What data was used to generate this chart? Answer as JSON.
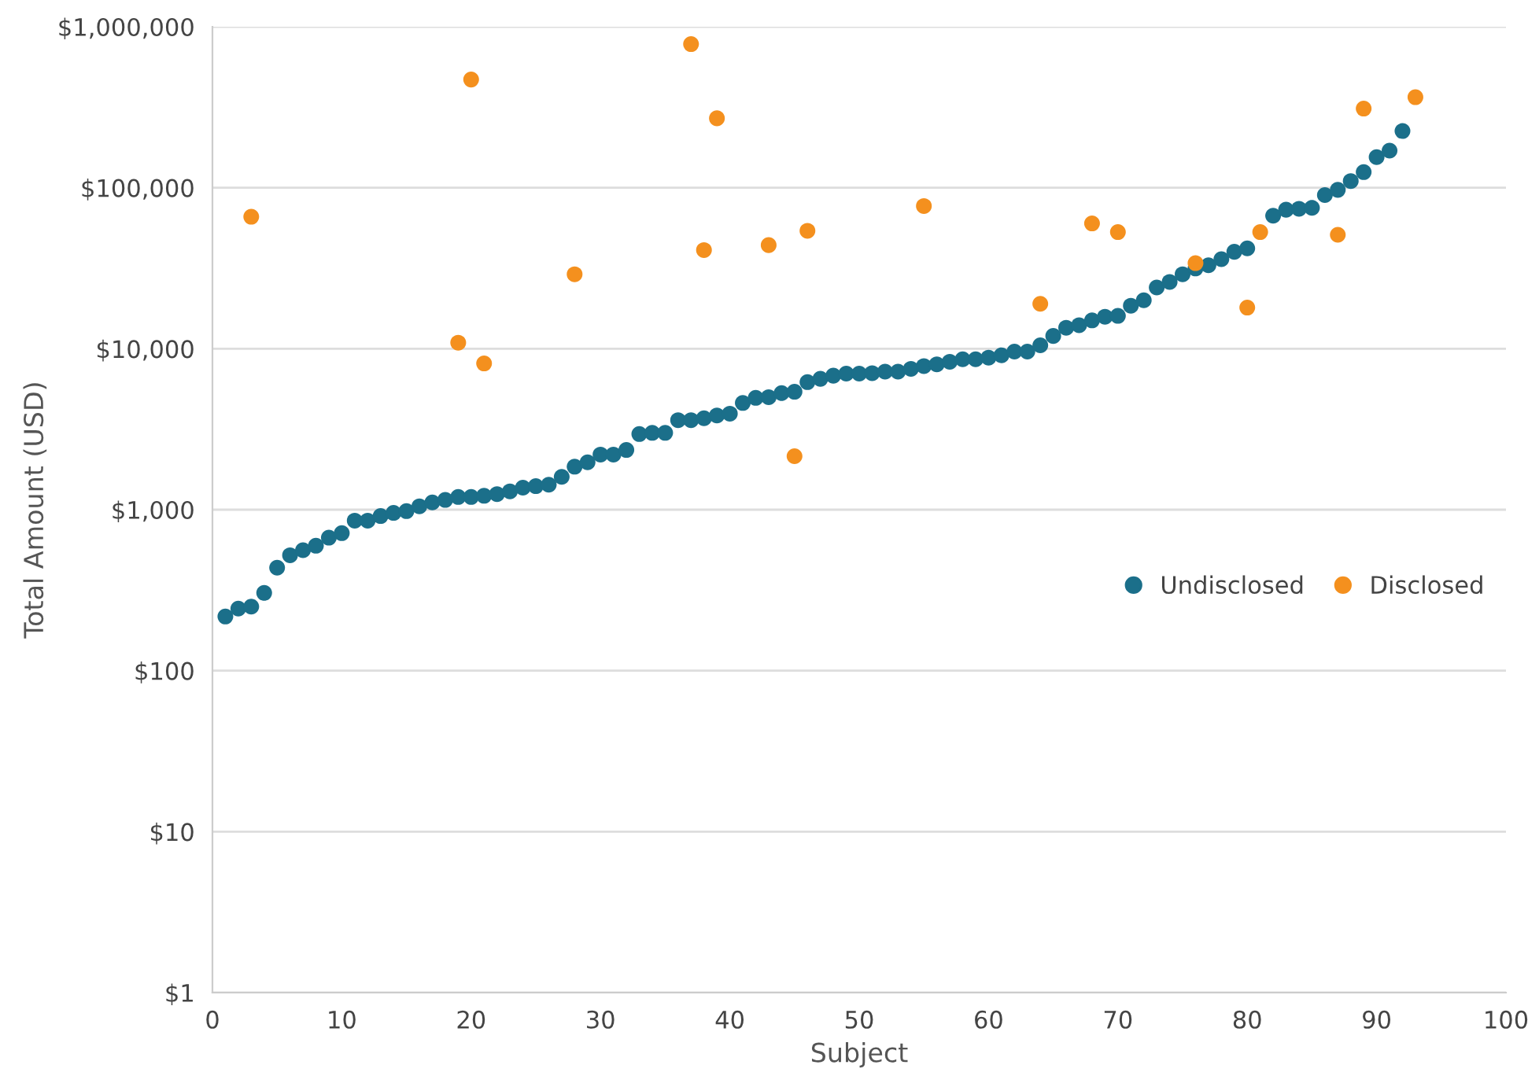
{
  "chart_data": {
    "type": "scatter",
    "xlabel": "Subject",
    "ylabel": "Total Amount (USD)",
    "log": "y",
    "xlim": [
      0,
      100
    ],
    "xticks": [
      0,
      10,
      20,
      30,
      40,
      50,
      60,
      70,
      80,
      90,
      100
    ],
    "ylim": [
      1,
      1000000
    ],
    "yticks": [
      {
        "value": 1,
        "label": "$1"
      },
      {
        "value": 10,
        "label": "$10"
      },
      {
        "value": 100,
        "label": "$100"
      },
      {
        "value": 1000,
        "label": "$1,000"
      },
      {
        "value": 10000,
        "label": "$10,000"
      },
      {
        "value": 100000,
        "label": "$100,000"
      },
      {
        "value": 1000000,
        "label": "$1,000,000"
      }
    ],
    "grid": "y",
    "legend": "right",
    "marker": "circle",
    "series": [
      {
        "name": "Undisclosed",
        "color": "#1b6f8a",
        "x": [
          1,
          2,
          3,
          4,
          5,
          6,
          7,
          8,
          9,
          10,
          11,
          12,
          13,
          14,
          15,
          16,
          17,
          18,
          19,
          20,
          21,
          22,
          23,
          24,
          25,
          26,
          27,
          28,
          29,
          30,
          31,
          32,
          33,
          34,
          35,
          36,
          37,
          38,
          39,
          40,
          41,
          42,
          43,
          44,
          45,
          46,
          47,
          48,
          49,
          50,
          51,
          52,
          53,
          54,
          55,
          56,
          57,
          58,
          59,
          60,
          61,
          62,
          63,
          64,
          65,
          66,
          67,
          68,
          69,
          70,
          71,
          72,
          73,
          74,
          75,
          76,
          77,
          78,
          79,
          80,
          81,
          82,
          83,
          84,
          85,
          86,
          87,
          88,
          89,
          90,
          91,
          92
        ],
        "values": [
          217,
          243,
          250,
          304,
          436,
          521,
          560,
          597,
          670,
          715,
          855,
          855,
          913,
          955,
          980,
          1050,
          1110,
          1150,
          1200,
          1200,
          1220,
          1250,
          1300,
          1370,
          1400,
          1430,
          1600,
          1850,
          1970,
          2200,
          2200,
          2350,
          2950,
          3000,
          3000,
          3600,
          3600,
          3700,
          3850,
          3950,
          4600,
          4950,
          5000,
          5300,
          5400,
          6200,
          6500,
          6800,
          7000,
          7000,
          7050,
          7200,
          7200,
          7500,
          7800,
          8000,
          8300,
          8600,
          8600,
          8800,
          9100,
          9600,
          9600,
          10500,
          12000,
          13500,
          14000,
          15000,
          15800,
          16000,
          18500,
          20000,
          24000,
          26000,
          29000,
          31500,
          33000,
          36000,
          40000,
          42000,
          null,
          67000,
          73000,
          74000,
          75000,
          90000,
          97000,
          110000,
          125000,
          155000,
          170000,
          225000
        ]
      },
      {
        "name": "Disclosed",
        "color": "#f4901e",
        "x": [
          3,
          19,
          20,
          21,
          28,
          37,
          38,
          39,
          43,
          45,
          46,
          55,
          64,
          68,
          70,
          76,
          80,
          81,
          87,
          89,
          93
        ],
        "values": [
          66000,
          10900,
          470000,
          8100,
          29000,
          780000,
          41000,
          270000,
          44000,
          2150,
          54000,
          77000,
          19000,
          60000,
          53000,
          34000,
          18000,
          53000,
          51000,
          310000,
          365000
        ]
      }
    ]
  }
}
